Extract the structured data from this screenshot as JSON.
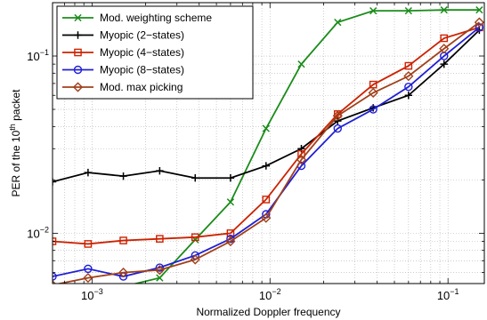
{
  "chart_data": {
    "type": "line",
    "xscale": "log",
    "yscale": "log",
    "xlim": [
      0.0006,
      0.16
    ],
    "ylim": [
      0.0052,
      0.2
    ],
    "xlabel": "Normalized Doppler frequency",
    "ylabel": {
      "prefix": "PER of the 10",
      "superscript": "th",
      "suffix": " packet"
    },
    "grid": true,
    "legend_position": "top-left",
    "xticks": [
      {
        "value": 0.001,
        "base": "10",
        "exp": "−3"
      },
      {
        "value": 0.01,
        "base": "10",
        "exp": "−2"
      },
      {
        "value": 0.1,
        "base": "10",
        "exp": "−1"
      }
    ],
    "yticks": [
      {
        "value": 0.01,
        "base": "10",
        "exp": "−2"
      },
      {
        "value": 0.1,
        "base": "10",
        "exp": "−1"
      }
    ],
    "x": [
      0.0006,
      0.00095,
      0.0015,
      0.0024,
      0.0038,
      0.006,
      0.0095,
      0.015,
      0.024,
      0.038,
      0.06,
      0.095,
      0.15
    ],
    "series": [
      {
        "name": "Mod. weighting scheme",
        "color": "#1a8c1a",
        "marker": "x",
        "values": [
          0.0048,
          0.0048,
          0.005,
          0.0056,
          0.0092,
          0.015,
          0.039,
          0.09,
          0.155,
          0.18,
          0.18,
          0.182,
          0.182
        ]
      },
      {
        "name": "Myopic (2−states)",
        "color": "#000000",
        "marker": "plus",
        "values": [
          0.0195,
          0.022,
          0.021,
          0.0225,
          0.0205,
          0.0205,
          0.024,
          0.03,
          0.043,
          0.051,
          0.06,
          0.09,
          0.14
        ]
      },
      {
        "name": "Myopic (4−states)",
        "color": "#cc2200",
        "marker": "square",
        "values": [
          0.009,
          0.0087,
          0.0091,
          0.0093,
          0.0095,
          0.01,
          0.0155,
          0.028,
          0.047,
          0.069,
          0.088,
          0.126,
          0.145
        ]
      },
      {
        "name": "Myopic (8−states)",
        "color": "#1f1fd4",
        "marker": "circle",
        "values": [
          0.0057,
          0.0063,
          0.0057,
          0.0064,
          0.0075,
          0.0093,
          0.0128,
          0.024,
          0.039,
          0.05,
          0.067,
          0.1,
          0.145
        ]
      },
      {
        "name": "Mod. max picking",
        "color": "#a0401a",
        "marker": "diamond",
        "values": [
          0.0051,
          0.0056,
          0.006,
          0.0062,
          0.0071,
          0.009,
          0.0122,
          0.026,
          0.046,
          0.062,
          0.077,
          0.11,
          0.155
        ]
      }
    ]
  }
}
